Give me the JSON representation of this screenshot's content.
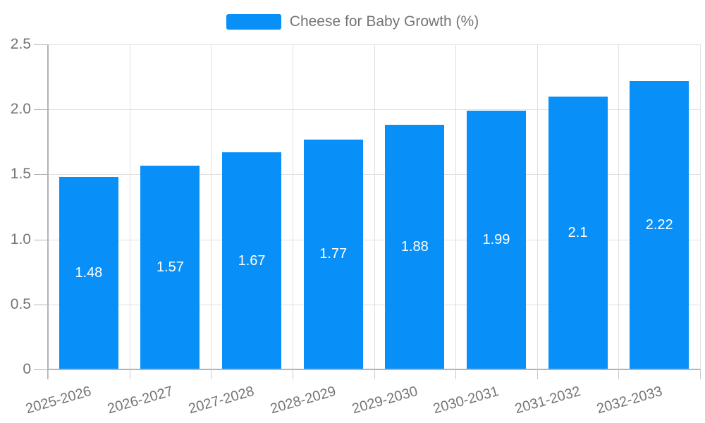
{
  "legend": {
    "label": "Cheese for Baby Growth (%)"
  },
  "chart_data": {
    "type": "bar",
    "title": "",
    "xlabel": "",
    "ylabel": "",
    "series_name": "Cheese for Baby Growth (%)",
    "categories": [
      "2025-2026",
      "2026-2027",
      "2027-2028",
      "2028-2029",
      "2029-2030",
      "2030-2031",
      "2031-2032",
      "2032-2033"
    ],
    "values": [
      1.48,
      1.57,
      1.67,
      1.77,
      1.88,
      1.99,
      2.1,
      2.22
    ],
    "value_labels": [
      "1.48",
      "1.57",
      "1.67",
      "1.77",
      "1.88",
      "1.99",
      "2.1",
      "2.22"
    ],
    "ylim": [
      0,
      2.5
    ],
    "ytick_values": [
      0,
      0.5,
      1.0,
      1.5,
      2.0,
      2.5
    ],
    "ytick_labels": [
      "0",
      "0.5",
      "1.0",
      "1.5",
      "2.0",
      "2.5"
    ],
    "grid": true,
    "legend_position": "top-center",
    "bar_color": "#0990f8",
    "value_label_color": "#ffffff",
    "axis_text_color": "#757575",
    "axis_line_color": "#b3b3b3",
    "grid_color": "#e0e0e0"
  }
}
